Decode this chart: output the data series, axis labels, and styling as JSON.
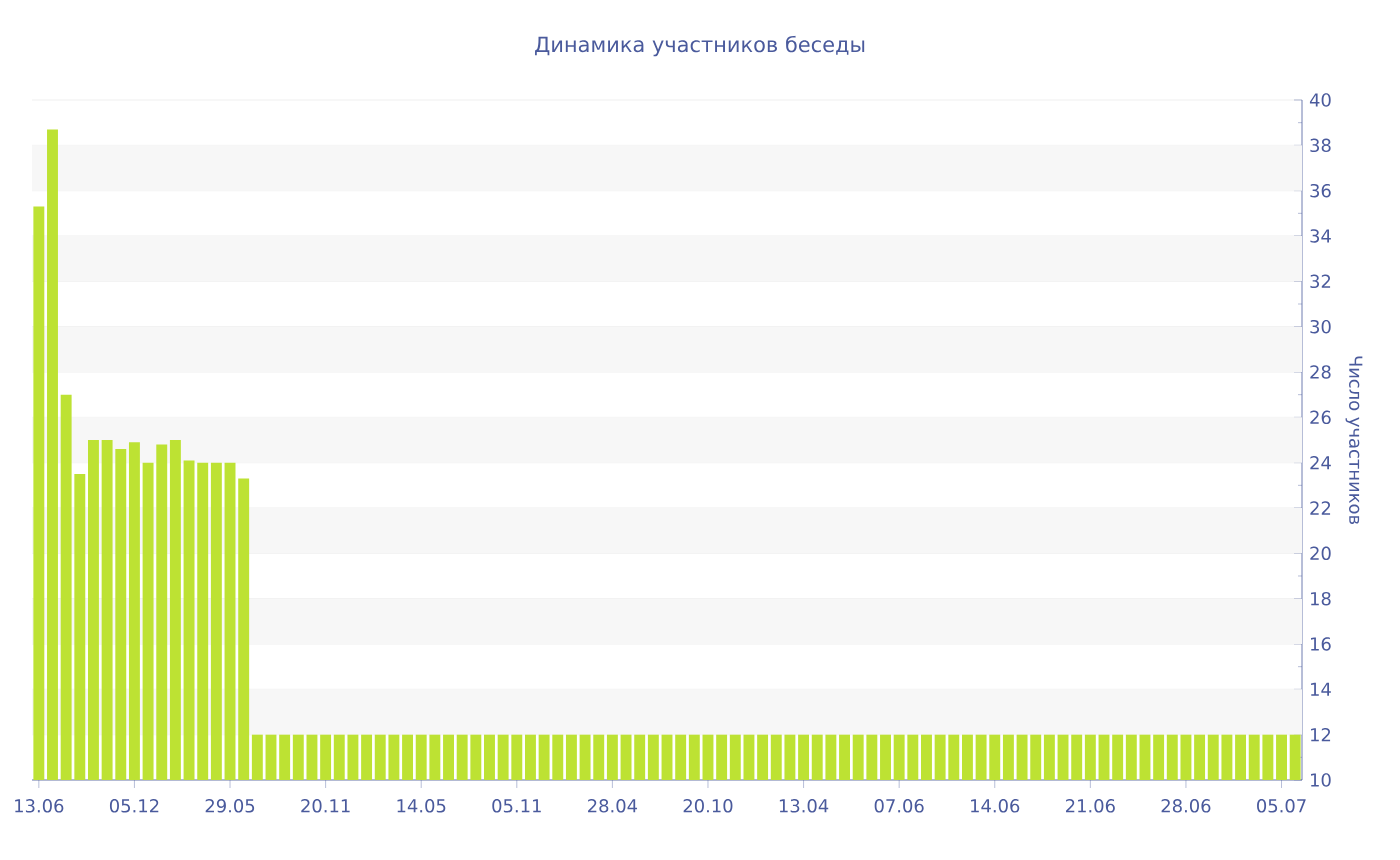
{
  "chart_data": {
    "type": "bar",
    "title": "Динамика участников беседы",
    "ylabel": "Число участников",
    "categories": [
      "13.06",
      null,
      null,
      null,
      null,
      null,
      null,
      "05.12",
      null,
      null,
      null,
      null,
      null,
      null,
      "29.05",
      null,
      null,
      null,
      null,
      null,
      null,
      "20.11",
      null,
      null,
      null,
      null,
      null,
      null,
      "14.05",
      null,
      null,
      null,
      null,
      null,
      null,
      "05.11",
      null,
      null,
      null,
      null,
      null,
      null,
      "28.04",
      null,
      null,
      null,
      null,
      null,
      null,
      "20.10",
      null,
      null,
      null,
      null,
      null,
      null,
      "13.04",
      null,
      null,
      null,
      null,
      null,
      null,
      "07.06",
      null,
      null,
      null,
      null,
      null,
      null,
      "14.06",
      null,
      null,
      null,
      null,
      null,
      null,
      "21.06",
      null,
      null,
      null,
      null,
      null,
      null,
      "28.06",
      null,
      null,
      null,
      null,
      null,
      null,
      "05.07",
      null
    ],
    "values": [
      35.3,
      38.7,
      27.0,
      23.5,
      25.0,
      25.0,
      24.6,
      24.9,
      24.0,
      24.8,
      25.0,
      24.1,
      24.0,
      24.0,
      24.0,
      23.3,
      12,
      12,
      12,
      12,
      12,
      12,
      12,
      12,
      12,
      12,
      12,
      12,
      12,
      12,
      12,
      12,
      12,
      12,
      12,
      12,
      12,
      12,
      12,
      12,
      12,
      12,
      12,
      12,
      12,
      12,
      12,
      12,
      12,
      12,
      12,
      12,
      12,
      12,
      12,
      12,
      12,
      12,
      12,
      12,
      12,
      12,
      12,
      12,
      12,
      12,
      12,
      12,
      12,
      12,
      12,
      12,
      12,
      12,
      12,
      12,
      12,
      12,
      12,
      12,
      12,
      12,
      12,
      12,
      12,
      12,
      12,
      12,
      12,
      12,
      12,
      12,
      12
    ],
    "color": "#bde233",
    "ylim": [
      10,
      40
    ],
    "yticks": [
      10,
      12,
      14,
      16,
      18,
      20,
      22,
      24,
      26,
      28,
      30,
      32,
      34,
      36,
      38,
      40
    ],
    "grid": "y"
  }
}
